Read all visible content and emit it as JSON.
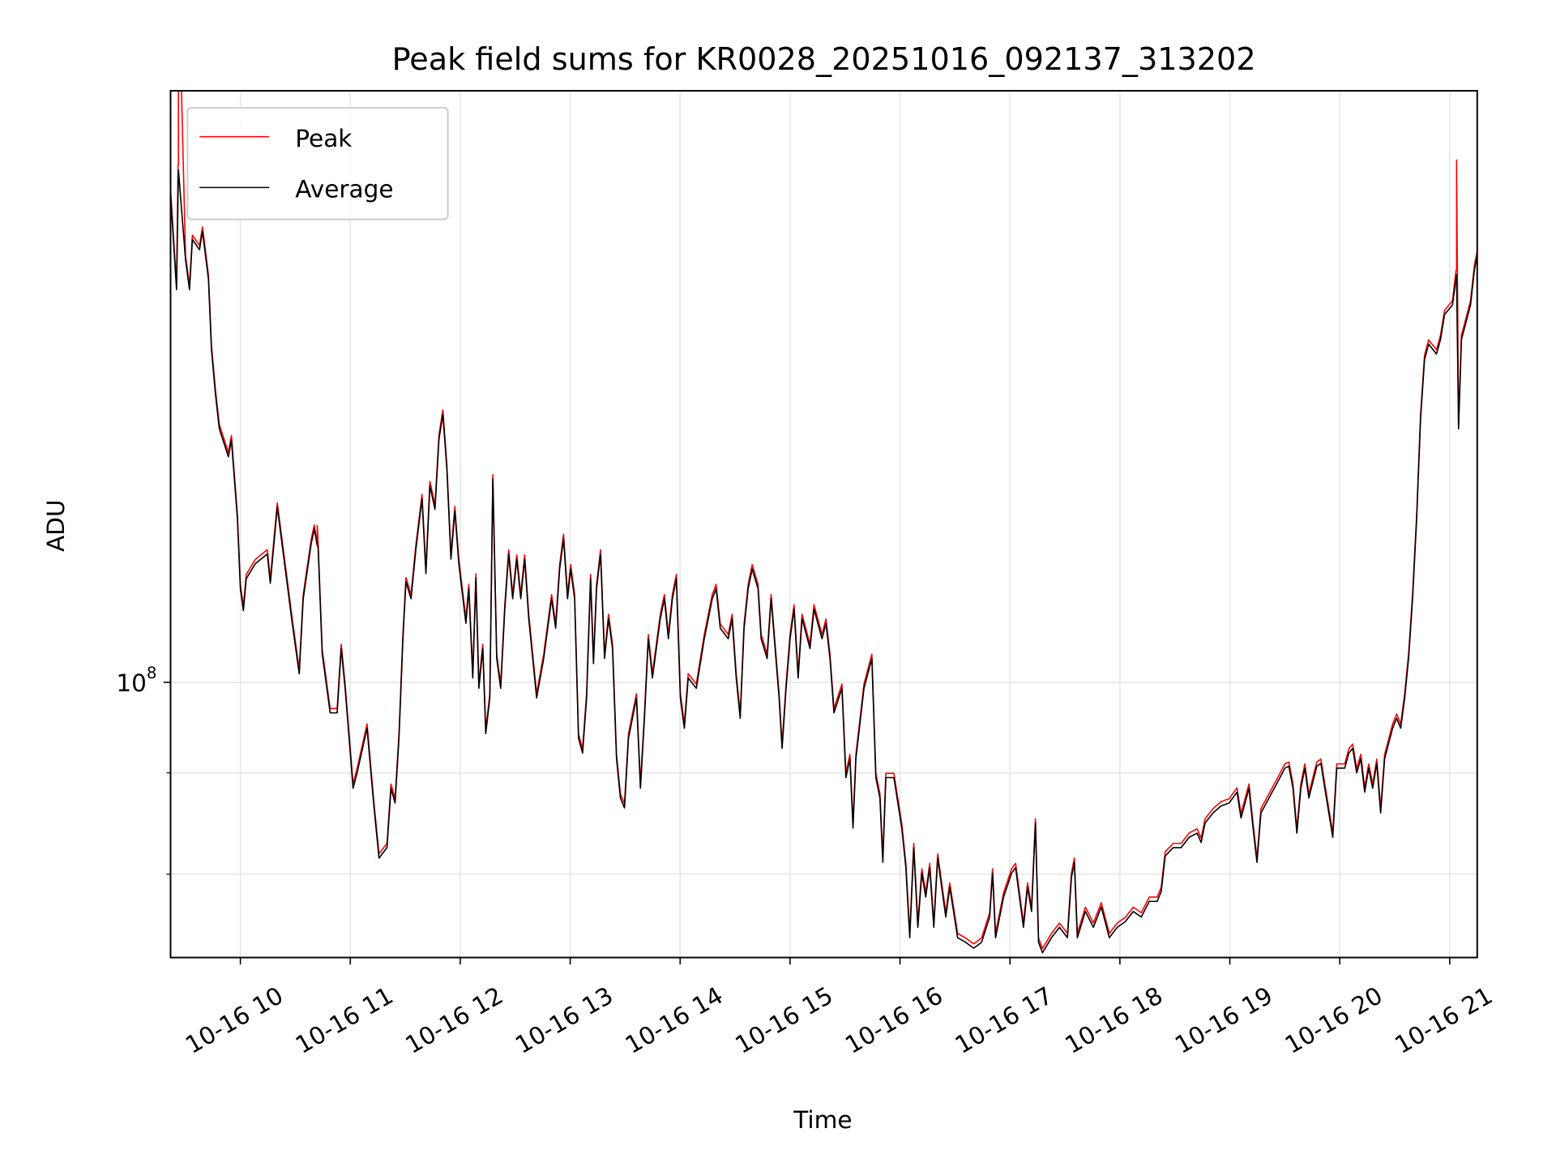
{
  "chart_data": {
    "type": "line",
    "title": "Peak field sums for KR0028_20251016_092137_313202",
    "xlabel": "Time",
    "ylabel": "ADU",
    "yscale": "log",
    "y_unit_multiplier": 100000000,
    "ylim_e8": [
      0.726,
      1.99
    ],
    "xlim_hours": [
      9.365,
      21.25
    ],
    "grid": true,
    "legend_position": "top-left",
    "colors": {
      "peak": "#ff0000",
      "average": "#000000",
      "grid": "#e6e6e6"
    },
    "xticks": [
      {
        "hour": 10,
        "label": "10-16 10"
      },
      {
        "hour": 11,
        "label": "10-16 11"
      },
      {
        "hour": 12,
        "label": "10-16 12"
      },
      {
        "hour": 13,
        "label": "10-16 13"
      },
      {
        "hour": 14,
        "label": "10-16 14"
      },
      {
        "hour": 15,
        "label": "10-16 15"
      },
      {
        "hour": 16,
        "label": "10-16 16"
      },
      {
        "hour": 17,
        "label": "10-16 17"
      },
      {
        "hour": 18,
        "label": "10-16 18"
      },
      {
        "hour": 19,
        "label": "10-16 19"
      },
      {
        "hour": 20,
        "label": "10-16 20"
      },
      {
        "hour": 21,
        "label": "10-16 21"
      }
    ],
    "yticks_major": [
      {
        "value_e8": 1.0,
        "base": "10",
        "exponent": "8"
      }
    ],
    "yticks_minor_e8": [
      0.8,
      0.9
    ],
    "series": [
      {
        "name": "Peak",
        "ratio_to_average": 1.005,
        "spikes": [
          {
            "hour": 9.437,
            "value_e8": 2.3
          },
          {
            "hour": 21.062,
            "value_e8": 1.836
          },
          {
            "hour": 10.7,
            "value_e8": 1.2
          }
        ]
      },
      {
        "name": "Average"
      }
    ],
    "average": {
      "x_hours": [
        9.365,
        9.419,
        9.437,
        9.501,
        9.537,
        9.564,
        9.628,
        9.655,
        9.71,
        9.737,
        9.773,
        9.809,
        9.891,
        9.918,
        9.973,
        10.0,
        10.027,
        10.054,
        10.136,
        10.245,
        10.272,
        10.336,
        10.408,
        10.472,
        10.535,
        10.572,
        10.644,
        10.672,
        10.708,
        10.744,
        10.817,
        10.88,
        10.917,
        10.953,
        11.025,
        11.062,
        11.152,
        11.216,
        11.261,
        11.334,
        11.37,
        11.407,
        11.443,
        11.479,
        11.506,
        11.552,
        11.597,
        11.652,
        11.688,
        11.724,
        11.77,
        11.806,
        11.842,
        11.878,
        11.915,
        11.951,
        11.987,
        12.051,
        12.078,
        12.114,
        12.142,
        12.169,
        12.205,
        12.232,
        12.269,
        12.296,
        12.332,
        12.368,
        12.405,
        12.441,
        12.477,
        12.514,
        12.55,
        12.586,
        12.623,
        12.695,
        12.759,
        12.831,
        12.868,
        12.904,
        12.94,
        12.976,
        13.004,
        13.04,
        13.076,
        13.113,
        13.149,
        13.185,
        13.212,
        13.24,
        13.276,
        13.312,
        13.349,
        13.385,
        13.421,
        13.457,
        13.494,
        13.53,
        13.603,
        13.639,
        13.675,
        13.711,
        13.748,
        13.82,
        13.857,
        13.893,
        13.929,
        13.966,
        14.002,
        14.038,
        14.074,
        14.147,
        14.22,
        14.292,
        14.328,
        14.365,
        14.437,
        14.473,
        14.51,
        14.546,
        14.582,
        14.619,
        14.655,
        14.709,
        14.737,
        14.791,
        14.828,
        14.864,
        14.9,
        14.927,
        14.964,
        15.0,
        15.036,
        15.073,
        15.109,
        15.181,
        15.218,
        15.29,
        15.327,
        15.363,
        15.399,
        15.472,
        15.508,
        15.544,
        15.572,
        15.599,
        15.672,
        15.744,
        15.78,
        15.817,
        15.844,
        15.871,
        15.944,
        16.016,
        16.053,
        16.089,
        16.125,
        16.162,
        16.198,
        16.234,
        16.27,
        16.307,
        16.343,
        16.416,
        16.452,
        16.524,
        16.597,
        16.67,
        16.742,
        16.815,
        16.842,
        16.869,
        16.942,
        17.015,
        17.051,
        17.123,
        17.16,
        17.196,
        17.232,
        17.26,
        17.296,
        17.378,
        17.45,
        17.523,
        17.559,
        17.586,
        17.613,
        17.686,
        17.759,
        17.831,
        17.904,
        17.976,
        18.049,
        18.122,
        18.194,
        18.267,
        18.339,
        18.376,
        18.412,
        18.485,
        18.557,
        18.63,
        18.702,
        18.739,
        18.775,
        18.848,
        18.92,
        18.993,
        19.065,
        19.102,
        19.174,
        19.211,
        19.247,
        19.283,
        19.356,
        19.428,
        19.501,
        19.537,
        19.574,
        19.61,
        19.646,
        19.682,
        19.719,
        19.791,
        19.828,
        19.864,
        19.936,
        19.973,
        20.045,
        20.082,
        20.118,
        20.154,
        20.191,
        20.227,
        20.263,
        20.299,
        20.336,
        20.372,
        20.408,
        20.481,
        20.517,
        20.554,
        20.59,
        20.626,
        20.662,
        20.699,
        20.735,
        20.771,
        20.808,
        20.88,
        20.916,
        20.953,
        21.025,
        21.062,
        21.08,
        21.107,
        21.189,
        21.225,
        21.252
      ],
      "values_e8": [
        1.764,
        1.579,
        1.815,
        1.635,
        1.579,
        1.674,
        1.654,
        1.69,
        1.598,
        1.473,
        1.398,
        1.343,
        1.3,
        1.326,
        1.21,
        1.115,
        1.087,
        1.128,
        1.148,
        1.161,
        1.122,
        1.226,
        1.141,
        1.071,
        1.01,
        1.102,
        1.175,
        1.195,
        1.168,
        1.034,
        0.965,
        0.965,
        1.04,
        0.993,
        0.884,
        0.9,
        0.948,
        0.864,
        0.815,
        0.825,
        0.884,
        0.869,
        0.937,
        1.053,
        1.124,
        1.102,
        1.168,
        1.238,
        1.135,
        1.257,
        1.223,
        1.327,
        1.366,
        1.282,
        1.154,
        1.221,
        1.148,
        1.071,
        1.115,
        1.005,
        1.129,
        0.993,
        1.04,
        0.942,
        0.982,
        1.267,
        1.028,
        0.993,
        1.089,
        1.161,
        1.102,
        1.154,
        1.102,
        1.154,
        1.077,
        0.982,
        1.028,
        1.102,
        1.065,
        1.141,
        1.182,
        1.102,
        1.141,
        1.102,
        0.937,
        0.921,
        0.982,
        1.128,
        1.022,
        1.115,
        1.161,
        1.028,
        1.077,
        1.04,
        0.915,
        0.874,
        0.864,
        0.937,
        0.982,
        0.884,
        0.959,
        1.052,
        1.005,
        1.077,
        1.102,
        1.052,
        1.102,
        1.128,
        0.982,
        0.948,
        1.005,
        0.993,
        1.052,
        1.102,
        1.115,
        1.065,
        1.052,
        1.077,
        1.005,
        0.959,
        1.065,
        1.115,
        1.141,
        1.115,
        1.052,
        1.028,
        1.102,
        1.04,
        0.982,
        0.926,
        0.993,
        1.052,
        1.089,
        1.005,
        1.077,
        1.04,
        1.089,
        1.052,
        1.071,
        1.028,
        0.965,
        0.993,
        0.895,
        0.915,
        0.844,
        0.915,
        0.993,
        1.028,
        0.895,
        0.874,
        0.811,
        0.895,
        0.895,
        0.844,
        0.806,
        0.743,
        0.825,
        0.752,
        0.801,
        0.779,
        0.806,
        0.752,
        0.815,
        0.761,
        0.788,
        0.743,
        0.739,
        0.734,
        0.739,
        0.761,
        0.801,
        0.743,
        0.779,
        0.801,
        0.806,
        0.752,
        0.788,
        0.766,
        0.849,
        0.739,
        0.73,
        0.743,
        0.752,
        0.743,
        0.797,
        0.811,
        0.743,
        0.766,
        0.752,
        0.77,
        0.743,
        0.752,
        0.757,
        0.766,
        0.761,
        0.775,
        0.775,
        0.784,
        0.817,
        0.825,
        0.825,
        0.835,
        0.839,
        0.83,
        0.849,
        0.859,
        0.866,
        0.869,
        0.88,
        0.854,
        0.884,
        0.844,
        0.811,
        0.859,
        0.874,
        0.889,
        0.905,
        0.907,
        0.884,
        0.839,
        0.884,
        0.905,
        0.874,
        0.907,
        0.91,
        0.884,
        0.835,
        0.905,
        0.905,
        0.921,
        0.926,
        0.9,
        0.915,
        0.88,
        0.905,
        0.884,
        0.91,
        0.859,
        0.915,
        0.948,
        0.959,
        0.948,
        0.982,
        1.028,
        1.102,
        1.209,
        1.358,
        1.456,
        1.482,
        1.465,
        1.49,
        1.534,
        1.551,
        1.607,
        1.343,
        1.49,
        1.551,
        1.616,
        1.645
      ]
    }
  }
}
